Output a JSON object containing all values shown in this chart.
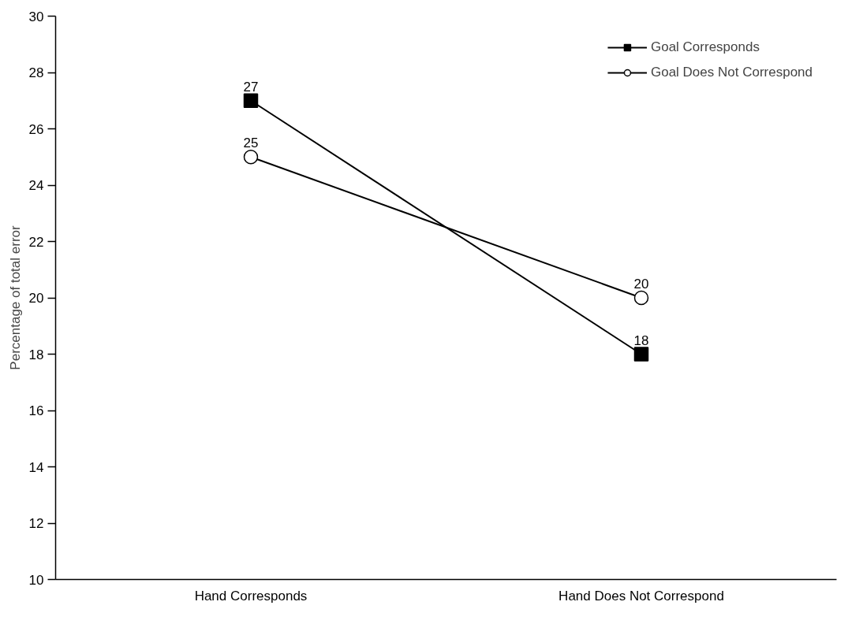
{
  "chart_data": {
    "type": "line",
    "ylabel": "Percentage of total error",
    "categories": [
      "Hand Corresponds",
      "Hand Does Not Correspond"
    ],
    "series": [
      {
        "name": "Goal Corresponds",
        "color": "#000000",
        "marker": "square",
        "values": [
          27,
          18
        ]
      },
      {
        "name": "Goal Does Not Correspond",
        "color": "#000000",
        "marker": "circle",
        "values": [
          25,
          20
        ]
      }
    ],
    "ylim": [
      10,
      30
    ],
    "yticks": [
      10,
      12,
      14,
      16,
      18,
      20,
      22,
      24,
      26,
      28,
      30
    ],
    "data_labels": true,
    "grid": false,
    "legend": "top right"
  }
}
